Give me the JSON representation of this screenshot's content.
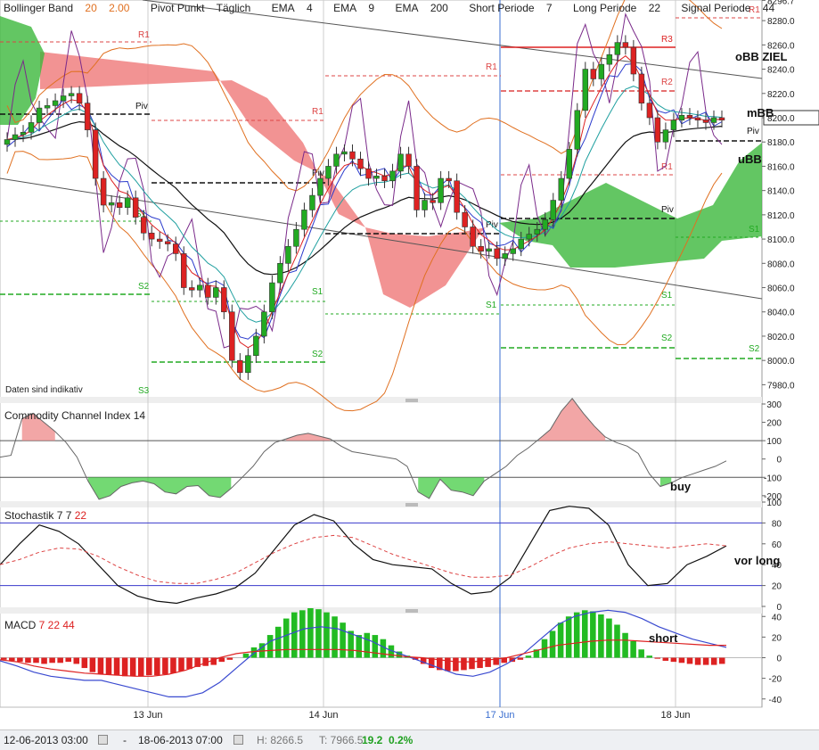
{
  "header": {
    "items": [
      {
        "label": "Bollinger Band",
        "p1": "20",
        "p2": "2.00"
      },
      {
        "label": "Pivot Punkt",
        "p1": "Täglich"
      },
      {
        "label": "EMA",
        "p1": "4"
      },
      {
        "label": "EMA",
        "p1": "9"
      },
      {
        "label": "EMA",
        "p1": "200"
      },
      {
        "label": "Short Periode",
        "p1": "7"
      },
      {
        "label": "Long Periode",
        "p1": "22"
      },
      {
        "label": "Signal Periode",
        "p1": "44"
      }
    ]
  },
  "footer": {
    "from": "12-06-2013 03:00",
    "to": "18-06-2013 07:00",
    "high": "H: 8266.5",
    "low": "T: 7966.5",
    "change": "19.2",
    "change_pct": "0.2%"
  },
  "colors": {
    "up": "#22aa22",
    "down": "#dd2222",
    "bb": "#e07020",
    "ema4": "#dd2222",
    "ema9": "#20a0a0",
    "ema200": "#111111",
    "purple": "#7a2a8a",
    "blue": "#2a3acc",
    "cloud_green": "#3cb83c",
    "cloud_red": "#f08080"
  },
  "chart_data": [
    {
      "type": "candlestick",
      "note_text": "Daten sind indikativ",
      "y_ticks": [
        "8296.7",
        "8280.0",
        "8260.0",
        "8240.0",
        "8220.0",
        "8200.0",
        "8180.0",
        "8160.0",
        "8140.0",
        "8120.0",
        "8100.0",
        "8080.0",
        "8060.0",
        "8040.0",
        "8020.0",
        "8000.0",
        "7980.0"
      ],
      "ylim": [
        7970,
        8297
      ],
      "x_ticks": [
        "13 Jun",
        "14 Jun",
        "17 Jun",
        "18 Jun"
      ],
      "current_price": "8200.0",
      "annotations": [
        "oBB ZIEL",
        "mBB",
        "uBB"
      ],
      "close": [
        8182,
        8186,
        8188,
        8196,
        8208,
        8210,
        8214,
        8218,
        8220,
        8212,
        8190,
        8150,
        8128,
        8130,
        8126,
        8134,
        8118,
        8105,
        8100,
        8098,
        8096,
        8088,
        8060,
        8058,
        8062,
        8052,
        8060,
        8040,
        8000,
        7990,
        8004,
        8020,
        8040,
        8064,
        8080,
        8094,
        8108,
        8124,
        8136,
        8150,
        8160,
        8170,
        8172,
        8166,
        8158,
        8150,
        8152,
        8148,
        8156,
        8170,
        8160,
        8124,
        8132,
        8130,
        8150,
        8148,
        8122,
        8110,
        8094,
        8090,
        8092,
        8084,
        8088,
        8092,
        8100,
        8104,
        8108,
        8116,
        8132,
        8150,
        8174,
        8206,
        8240,
        8232,
        8244,
        8252,
        8262,
        8258,
        8236,
        8212,
        8200,
        8180,
        8190,
        8198,
        8202,
        8200,
        8198,
        8196,
        8200,
        8198
      ]
    },
    {
      "type": "line",
      "title": "Commodity Channel Index",
      "period": "14",
      "y_ticks": [
        "300",
        "200",
        "100",
        "0",
        "-100",
        "-200"
      ],
      "ylim": [
        -230,
        300
      ],
      "label": "buy",
      "values": [
        10,
        20,
        220,
        250,
        200,
        150,
        90,
        10,
        -120,
        -220,
        -200,
        -150,
        -130,
        -120,
        -135,
        -180,
        -190,
        -150,
        -145,
        -200,
        -210,
        -160,
        -100,
        -40,
        40,
        90,
        110,
        130,
        140,
        125,
        110,
        70,
        40,
        30,
        20,
        10,
        0,
        -40,
        -180,
        -215,
        -110,
        -170,
        -180,
        -200,
        -120,
        -80,
        -40,
        20,
        60,
        110,
        160,
        260,
        330,
        250,
        180,
        120,
        90,
        70,
        30,
        -80,
        -150,
        -130,
        -100,
        -80,
        -60,
        -40,
        -10
      ]
    },
    {
      "type": "line",
      "title": "Stochastik",
      "params": [
        "7",
        "7",
        "22"
      ],
      "y_ticks": [
        "100",
        "80",
        "60",
        "40",
        "20",
        "0"
      ],
      "ylim": [
        0,
        100
      ],
      "label": "vor long",
      "k": [
        40,
        60,
        78,
        72,
        60,
        40,
        20,
        10,
        5,
        3,
        8,
        12,
        18,
        32,
        55,
        78,
        88,
        82,
        60,
        45,
        40,
        38,
        36,
        22,
        12,
        14,
        28,
        60,
        92,
        96,
        94,
        78,
        40,
        20,
        22,
        40,
        48,
        58
      ],
      "d": [
        40,
        45,
        52,
        56,
        55,
        48,
        38,
        30,
        24,
        22,
        22,
        26,
        32,
        42,
        52,
        60,
        66,
        68,
        66,
        58,
        50,
        44,
        38,
        32,
        28,
        28,
        30,
        38,
        48,
        56,
        60,
        62,
        60,
        58,
        56,
        58,
        60,
        58
      ]
    },
    {
      "type": "bar",
      "title": "MACD",
      "params": [
        "7",
        "22",
        "44"
      ],
      "y_ticks": [
        "40",
        "20",
        "0",
        "-20",
        "-40"
      ],
      "ylim": [
        -48,
        48
      ],
      "label": "short",
      "histogram": [
        -2,
        -3,
        -4,
        -5,
        -5,
        -6,
        -5,
        -5,
        -4,
        -6,
        -10,
        -14,
        -16,
        -16,
        -17,
        -18,
        -18,
        -18,
        -17,
        -17,
        -16,
        -15,
        -13,
        -11,
        -9,
        -8,
        -7,
        -4,
        -2,
        0,
        4,
        10,
        14,
        22,
        30,
        38,
        44,
        46,
        48,
        47,
        44,
        40,
        34,
        26,
        22,
        24,
        22,
        18,
        12,
        6,
        2,
        -2,
        -6,
        -10,
        -12,
        -13,
        -13,
        -12,
        -11,
        -10,
        -9,
        -7,
        -5,
        -4,
        -2,
        2,
        8,
        18,
        26,
        34,
        40,
        44,
        46,
        45,
        42,
        38,
        32,
        24,
        16,
        8,
        2,
        -1,
        -3,
        -4,
        -5,
        -6,
        -7,
        -7,
        -7,
        -6
      ],
      "macd": [
        -3,
        -8,
        -14,
        -18,
        -20,
        -22,
        -22,
        -26,
        -30,
        -34,
        -38,
        -38,
        -34,
        -24,
        -10,
        4,
        16,
        22,
        28,
        30,
        28,
        22,
        16,
        8,
        2,
        -4,
        -10,
        -16,
        -18,
        -14,
        -6,
        4,
        18,
        32,
        40,
        44,
        46,
        44,
        38,
        30,
        24,
        18,
        14,
        10
      ],
      "signal": [
        -2,
        -4,
        -8,
        -11,
        -13,
        -15,
        -16,
        -17,
        -18,
        -18,
        -16,
        -12,
        -6,
        0,
        4,
        6,
        7,
        8,
        8,
        8,
        8,
        7,
        5,
        3,
        1,
        0,
        -2,
        -4,
        -4,
        -2,
        0,
        4,
        8,
        12,
        14,
        16,
        17,
        17,
        16,
        15,
        14,
        13,
        12,
        12
      ]
    }
  ]
}
